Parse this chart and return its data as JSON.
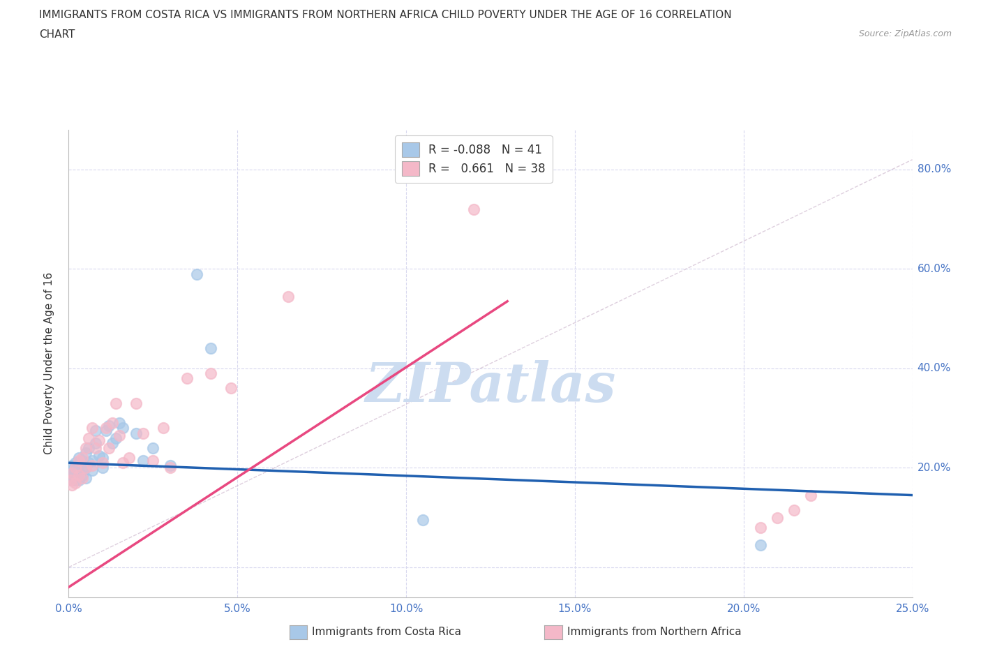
{
  "title_line1": "IMMIGRANTS FROM COSTA RICA VS IMMIGRANTS FROM NORTHERN AFRICA CHILD POVERTY UNDER THE AGE OF 16 CORRELATION",
  "title_line2": "CHART",
  "source": "Source: ZipAtlas.com",
  "ylabel": "Child Poverty Under the Age of 16",
  "legend_label1": "Immigrants from Costa Rica",
  "legend_label2": "Immigrants from Northern Africa",
  "r1": -0.088,
  "n1": 41,
  "r2": 0.661,
  "n2": 38,
  "color_blue": "#a8c8e8",
  "color_pink": "#f4b8c8",
  "color_blue_line": "#2060b0",
  "color_pink_line": "#e84880",
  "xlim": [
    0.0,
    0.25
  ],
  "ylim": [
    -0.06,
    0.88
  ],
  "xticks": [
    0.0,
    0.05,
    0.1,
    0.15,
    0.2,
    0.25
  ],
  "yticks": [
    0.0,
    0.2,
    0.4,
    0.6,
    0.8
  ],
  "blue_scatter_x": [
    0.0005,
    0.001,
    0.001,
    0.001,
    0.0015,
    0.002,
    0.002,
    0.002,
    0.003,
    0.003,
    0.003,
    0.003,
    0.004,
    0.004,
    0.004,
    0.005,
    0.005,
    0.005,
    0.006,
    0.006,
    0.007,
    0.007,
    0.008,
    0.008,
    0.009,
    0.01,
    0.01,
    0.011,
    0.012,
    0.013,
    0.014,
    0.015,
    0.016,
    0.02,
    0.022,
    0.025,
    0.03,
    0.038,
    0.042,
    0.105,
    0.205
  ],
  "blue_scatter_y": [
    0.185,
    0.175,
    0.195,
    0.205,
    0.185,
    0.175,
    0.19,
    0.21,
    0.175,
    0.19,
    0.205,
    0.22,
    0.185,
    0.195,
    0.215,
    0.18,
    0.2,
    0.23,
    0.21,
    0.24,
    0.195,
    0.215,
    0.25,
    0.275,
    0.225,
    0.2,
    0.22,
    0.275,
    0.285,
    0.25,
    0.26,
    0.29,
    0.28,
    0.27,
    0.215,
    0.24,
    0.205,
    0.59,
    0.44,
    0.095,
    0.045
  ],
  "pink_scatter_x": [
    0.0005,
    0.001,
    0.001,
    0.002,
    0.002,
    0.003,
    0.003,
    0.004,
    0.004,
    0.005,
    0.005,
    0.006,
    0.007,
    0.007,
    0.008,
    0.009,
    0.01,
    0.011,
    0.012,
    0.013,
    0.014,
    0.015,
    0.016,
    0.018,
    0.02,
    0.022,
    0.025,
    0.028,
    0.03,
    0.035,
    0.042,
    0.048,
    0.065,
    0.12,
    0.205,
    0.21,
    0.215,
    0.22
  ],
  "pink_scatter_y": [
    0.175,
    0.165,
    0.19,
    0.17,
    0.2,
    0.185,
    0.215,
    0.18,
    0.22,
    0.2,
    0.24,
    0.26,
    0.205,
    0.28,
    0.24,
    0.255,
    0.21,
    0.28,
    0.24,
    0.29,
    0.33,
    0.265,
    0.21,
    0.22,
    0.33,
    0.27,
    0.215,
    0.28,
    0.2,
    0.38,
    0.39,
    0.36,
    0.545,
    0.72,
    0.08,
    0.1,
    0.115,
    0.145
  ],
  "background_color": "#ffffff",
  "grid_color": "#d8d8ee",
  "watermark": "ZIPatlas",
  "watermark_color": "#ccdcf0",
  "blue_line_x0": 0.0,
  "blue_line_y0": 0.21,
  "blue_line_x1": 0.25,
  "blue_line_y1": 0.145,
  "pink_line_x0": 0.0,
  "pink_line_y0": -0.04,
  "pink_line_x1": 0.13,
  "pink_line_y1": 0.535
}
